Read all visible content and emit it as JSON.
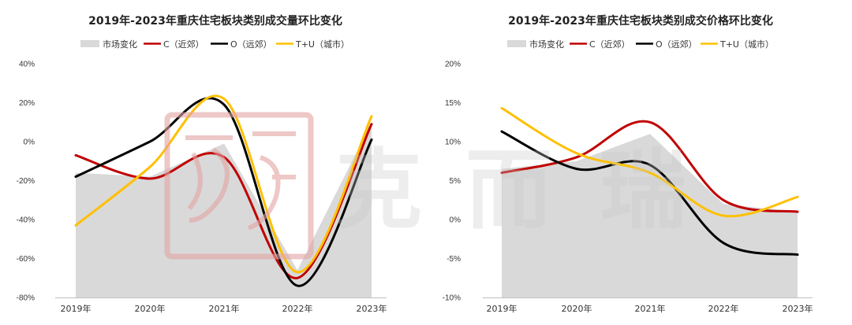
{
  "chart_data": [
    {
      "type": "line",
      "title": "2019年-2023年重庆住宅板块类别成交量环比变化",
      "categories": [
        "2019年",
        "2020年",
        "2021年",
        "2022年",
        "2023年"
      ],
      "ylim": [
        -80,
        40
      ],
      "yticks": [
        40,
        20,
        0,
        -20,
        -40,
        -60,
        -80
      ],
      "ytick_labels": [
        "40%",
        "20%",
        "0%",
        "-20%",
        "-40%",
        "-60%",
        "-80%"
      ],
      "area": {
        "name": "市场变化",
        "color": "#d9d9d9",
        "values": [
          -16,
          -18,
          -1,
          -66,
          10
        ]
      },
      "series": [
        {
          "name": "C（近郊）",
          "color": "#c00000",
          "values": [
            -7,
            -19,
            -8,
            -70,
            9
          ]
        },
        {
          "name": "O（远郊）",
          "color": "#000000",
          "values": [
            -18,
            0,
            19,
            -74,
            1
          ]
        },
        {
          "name": "T+U（城市）",
          "color": "#ffc000",
          "values": [
            -43,
            -13,
            22,
            -67,
            13
          ]
        }
      ]
    },
    {
      "type": "line",
      "title": "2019年-2023年重庆住宅板块类别成交价格环比变化",
      "categories": [
        "2019年",
        "2020年",
        "2021年",
        "2022年",
        "2023年"
      ],
      "ylim": [
        -10,
        20
      ],
      "yticks": [
        20,
        15,
        10,
        5,
        0,
        -5,
        -10
      ],
      "ytick_labels": [
        "20%",
        "15%",
        "10%",
        "5%",
        "0%",
        "-5%",
        "-10%"
      ],
      "area": {
        "name": "市场变化",
        "color": "#d9d9d9",
        "values": [
          6.5,
          7.5,
          11,
          2,
          1
        ]
      },
      "series": [
        {
          "name": "C（近郊）",
          "color": "#c00000",
          "values": [
            6,
            8,
            12.5,
            2.5,
            1
          ]
        },
        {
          "name": "O（远郊）",
          "color": "#000000",
          "values": [
            11.3,
            6.5,
            7,
            -3,
            -4.5
          ]
        },
        {
          "name": "T+U（城市）",
          "color": "#ffc000",
          "values": [
            14.3,
            8.5,
            6,
            0.5,
            2.9
          ]
        }
      ]
    }
  ],
  "watermark": {
    "chars": [
      "克",
      "而",
      "瑞"
    ]
  }
}
